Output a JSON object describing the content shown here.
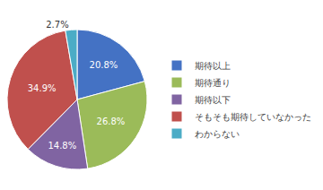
{
  "chart_data": {
    "type": "pie",
    "categories": [
      "期待以上",
      "期待通り",
      "期待以下",
      "そもそも期待していなかった",
      "わからない"
    ],
    "values": [
      20.8,
      26.8,
      14.8,
      34.9,
      2.7
    ],
    "value_labels": [
      "20.8%",
      "26.8%",
      "14.8%",
      "34.9%",
      "2.7%"
    ],
    "colors": [
      "#4472c4",
      "#9bbb59",
      "#8064a2",
      "#c0504d",
      "#4bacc6"
    ],
    "data_labels": true,
    "legend": "right"
  }
}
